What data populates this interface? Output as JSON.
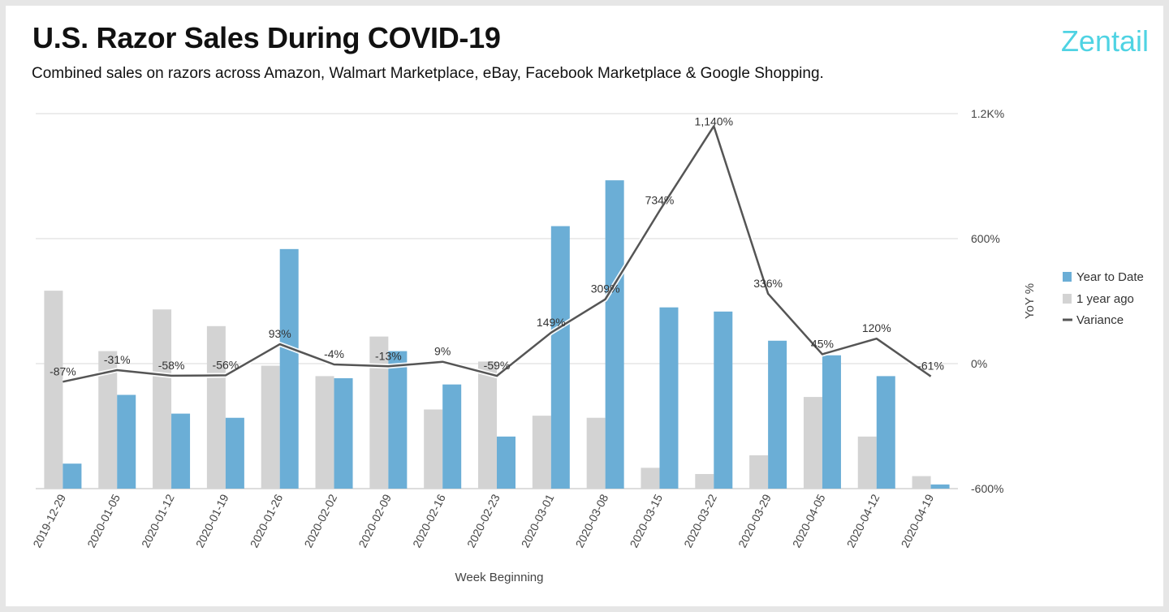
{
  "header": {
    "title": "U.S. Razor Sales During COVID-19",
    "subtitle": "Combined sales on razors across Amazon, Walmart Marketplace, eBay, Facebook Marketplace & Google Shopping.",
    "brand": "Zentail"
  },
  "colors": {
    "year_to_date": "#6baed6",
    "one_year_ago": "#d3d3d3",
    "variance": "#555555",
    "brand": "#4fd3e3",
    "grid": "#d9d9d9"
  },
  "chart_data": {
    "type": "bar",
    "categories": [
      "2019-12-29",
      "2020-01-05",
      "2020-01-12",
      "2020-01-19",
      "2020-01-26",
      "2020-02-02",
      "2020-02-09",
      "2020-02-16",
      "2020-02-23",
      "2020-03-01",
      "2020-03-08",
      "2020-03-15",
      "2020-03-22",
      "2020-03-29",
      "2020-04-05",
      "2020-04-12",
      "2020-04-19"
    ],
    "series": [
      {
        "name": "Year to Date",
        "kind": "bar",
        "axis": "left_unlabeled",
        "values": [
          12,
          45,
          36,
          34,
          115,
          53,
          66,
          50,
          25,
          126,
          148,
          87,
          85,
          71,
          64,
          54,
          2
        ]
      },
      {
        "name": "1 year ago",
        "kind": "bar",
        "axis": "left_unlabeled",
        "values": [
          95,
          66,
          86,
          78,
          59,
          54,
          73,
          38,
          61,
          35,
          34,
          10,
          7,
          16,
          44,
          25,
          6
        ]
      },
      {
        "name": "Variance",
        "kind": "line",
        "axis": "right",
        "values": [
          -87,
          -31,
          -58,
          -56,
          93,
          -4,
          -13,
          9,
          -59,
          149,
          309,
          734,
          1140,
          336,
          45,
          120,
          -61
        ],
        "labels": [
          "-87%",
          "-31%",
          "-58%",
          "-56%",
          "93%",
          "-4%",
          "-13%",
          "9%",
          "-59%",
          "149%",
          "309%",
          "734%",
          "1,140%",
          "336%",
          "45%",
          "120%",
          "-61%"
        ]
      }
    ],
    "bar_axis_range": [
      0,
      180
    ],
    "right_axis": {
      "label": "YoY %",
      "range": [
        -600,
        1200
      ],
      "ticks": [
        -600,
        0,
        600,
        1200
      ],
      "tick_labels": [
        "-600%",
        "0%",
        "600%",
        "1.2K%"
      ]
    },
    "xlabel": "Week Beginning",
    "legend_position": "right",
    "grid": true
  }
}
